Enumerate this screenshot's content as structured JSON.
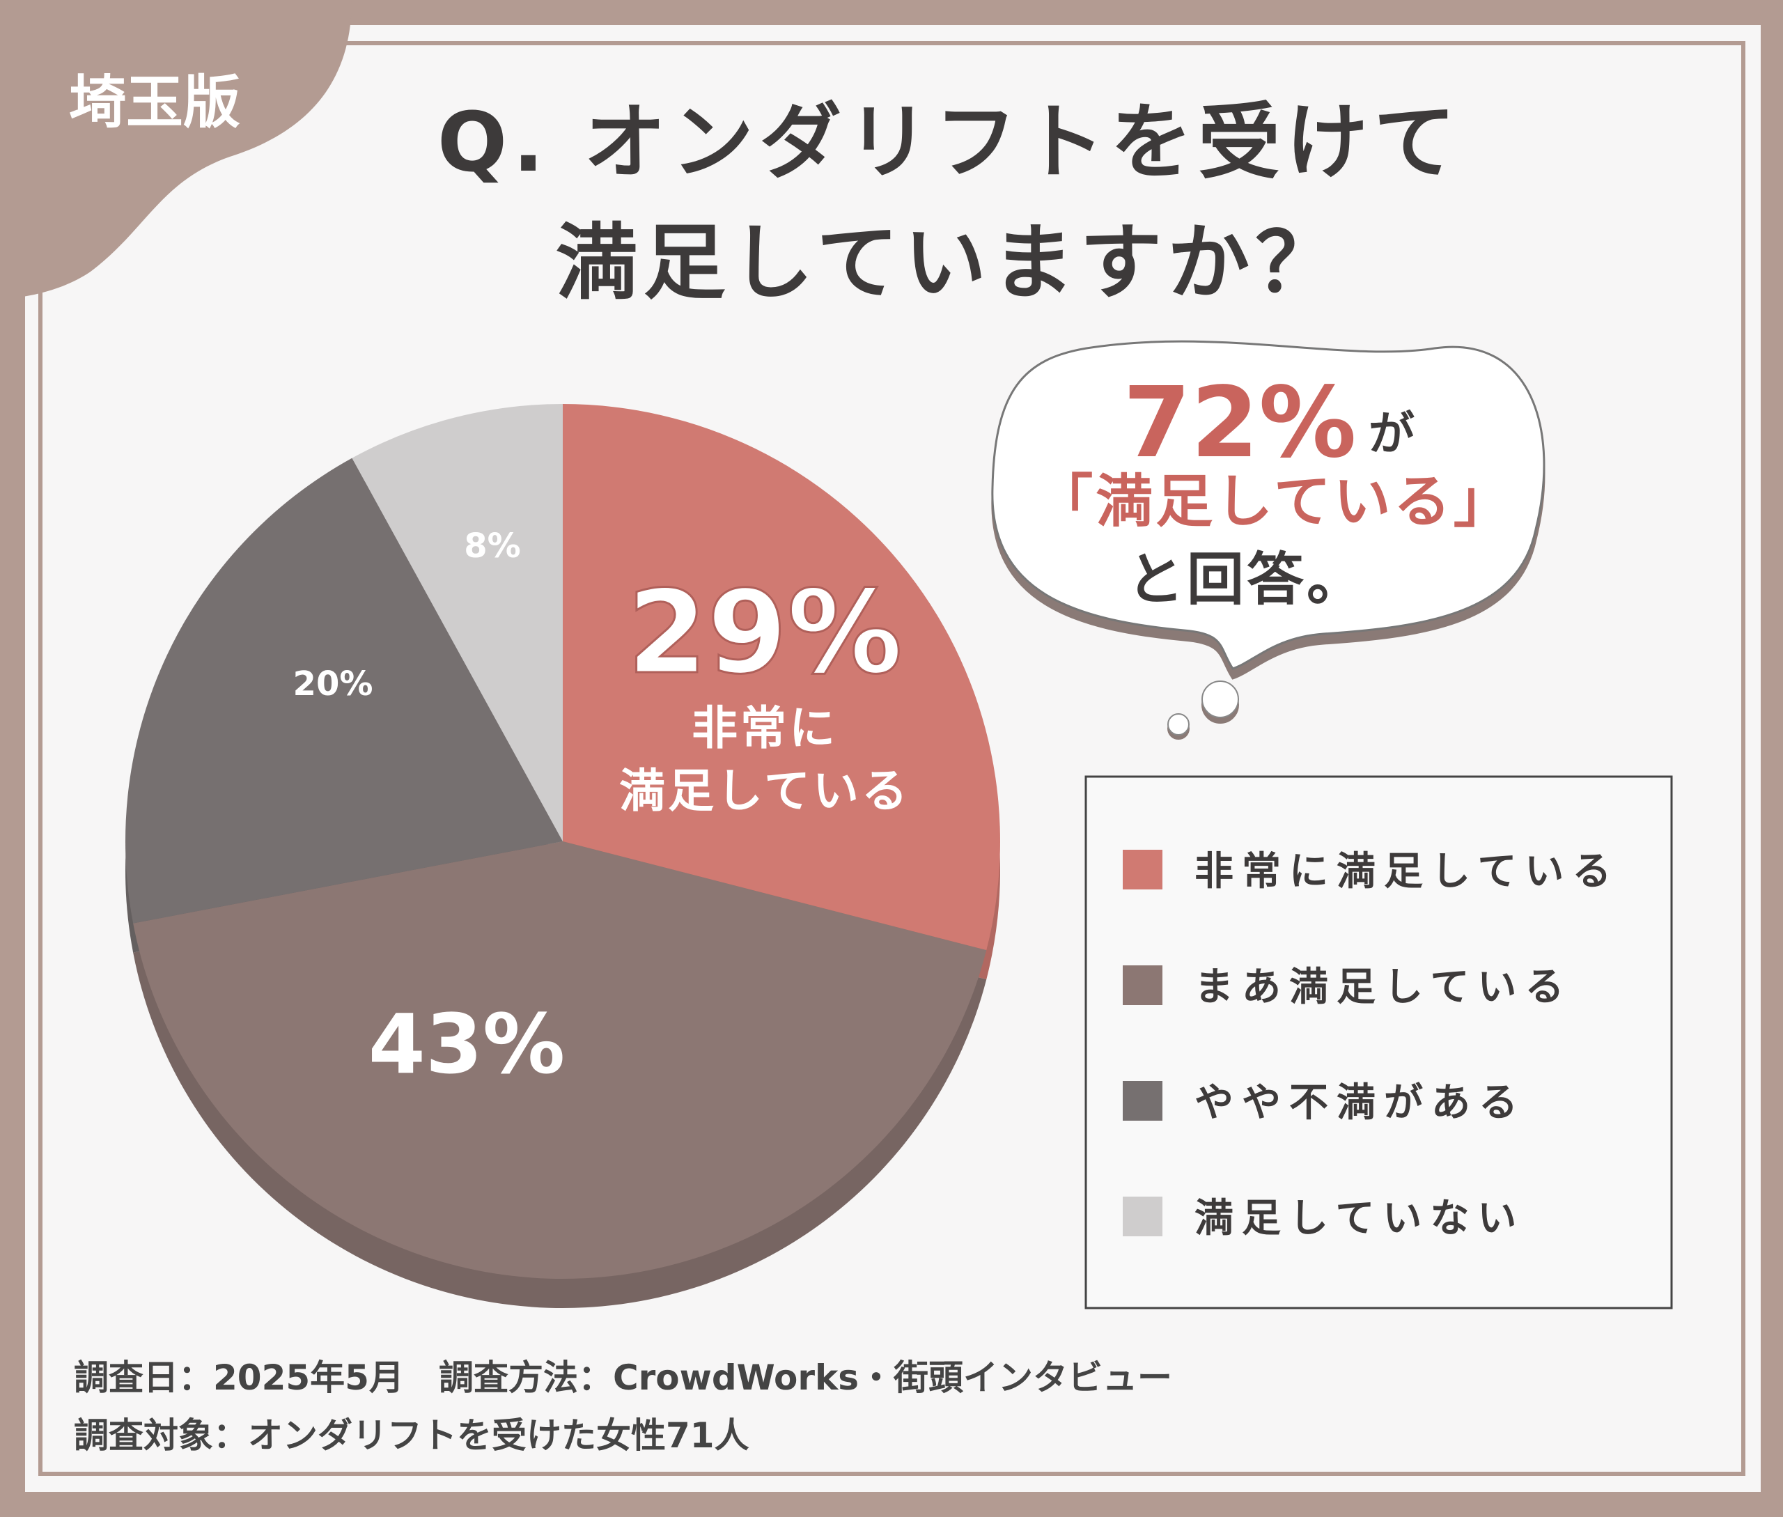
{
  "tag": "埼玉版",
  "title": {
    "line1": "Q. オンダリフトを受けて",
    "line2": "満足していますか？"
  },
  "bubble": {
    "percent": "72%",
    "ga": "が",
    "quote": "「満足している」",
    "answer": "と回答。"
  },
  "colors": {
    "frame": "#b39b92",
    "very": "#d07a72",
    "somewhat": "#8c7773",
    "dissatisfied": "#767070",
    "not": "#cfcdcd",
    "text": "#3d3a3a",
    "accent": "#c9645d"
  },
  "chart_data": {
    "type": "pie",
    "start": "top",
    "direction": "clockwise",
    "legend_placement": "right",
    "slices": [
      {
        "name": "非常に満足している",
        "value": 29,
        "label": "29%",
        "sublabel1": "非常に",
        "sublabel2": "満足している",
        "color": "#d07a72"
      },
      {
        "name": "まあ満足している",
        "value": 43,
        "label": "43%",
        "color": "#8c7773"
      },
      {
        "name": "やや不満がある",
        "value": 20,
        "label": "20%",
        "color": "#767070"
      },
      {
        "name": "満足していない",
        "value": 8,
        "label": "8%",
        "color": "#cfcdcd"
      }
    ]
  },
  "footer": {
    "line1": "調査日：2025年5月　調査方法：CrowdWorks・街頭インタビュー",
    "line2": "調査対象：オンダリフトを受けた女性71人"
  }
}
